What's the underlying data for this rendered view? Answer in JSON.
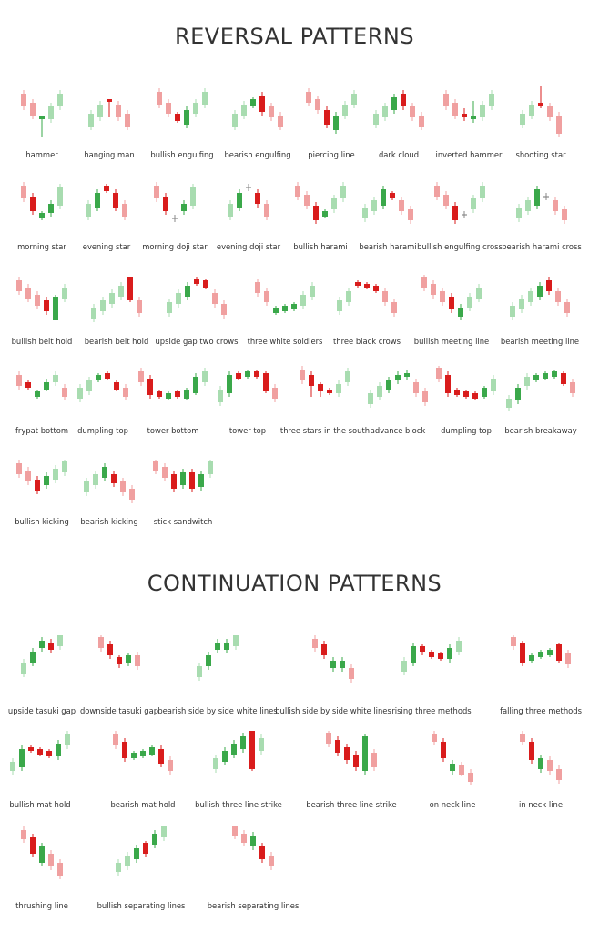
{
  "colors": {
    "bull_light": "#a8dcb0",
    "bull_dark": "#3aa84a",
    "bear_light": "#f0a0a0",
    "bear_dark": "#d91c1c",
    "doji": "#888888"
  },
  "reversal": {
    "title": "REVERSAL PATTERNS",
    "patterns": [
      {
        "label": "hammer"
      },
      {
        "label": "hanging man"
      },
      {
        "label": "bullish engulfing"
      },
      {
        "label": "bearish engulfing"
      },
      {
        "label": "piercing line"
      },
      {
        "label": "dark cloud"
      },
      {
        "label": "inverted hammer"
      },
      {
        "label": "shooting star"
      },
      {
        "label": "morning star"
      },
      {
        "label": "evening star"
      },
      {
        "label": "morning doji star"
      },
      {
        "label": "evening doji star"
      },
      {
        "label": "bullish harami"
      },
      {
        "label": "bearish harami"
      },
      {
        "label": "bullish engulfing cross"
      },
      {
        "label": "bearish harami cross"
      },
      {
        "label": "bullish belt hold"
      },
      {
        "label": "bearish belt hold"
      },
      {
        "label": "upside gap two crows"
      },
      {
        "label": "three white soldiers"
      },
      {
        "label": "three black crows"
      },
      {
        "label": "bullish meeting line"
      },
      {
        "label": "bearish meeting line"
      },
      {
        "label": "frypat bottom"
      },
      {
        "label": "dumpling top"
      },
      {
        "label": "tower bottom"
      },
      {
        "label": "tower top"
      },
      {
        "label": "three stars in the south"
      },
      {
        "label": "advance block"
      },
      {
        "label": "dumpling top"
      },
      {
        "label": "bearish breakaway"
      },
      {
        "label": "bullish kicking"
      },
      {
        "label": "bearish kicking"
      },
      {
        "label": "stick sandwitch"
      }
    ]
  },
  "continuation": {
    "title": "CONTINUATION PATTERNS",
    "patterns": [
      {
        "label": "upside tasuki gap"
      },
      {
        "label": "downside tasuki gap"
      },
      {
        "label": "bearish side by side white lines"
      },
      {
        "label": "bullish side by side white lines"
      },
      {
        "label": "rising three methods"
      },
      {
        "label": "falling three methods"
      },
      {
        "label": "bullish mat hold"
      },
      {
        "label": "bearish mat hold"
      },
      {
        "label": "bullish three line strike"
      },
      {
        "label": "bearish three line strike"
      },
      {
        "label": "on neck line"
      },
      {
        "label": "in neck line"
      },
      {
        "label": "thrushing line"
      },
      {
        "label": "bullish separating lines"
      },
      {
        "label": "bearish separating lines"
      }
    ]
  }
}
